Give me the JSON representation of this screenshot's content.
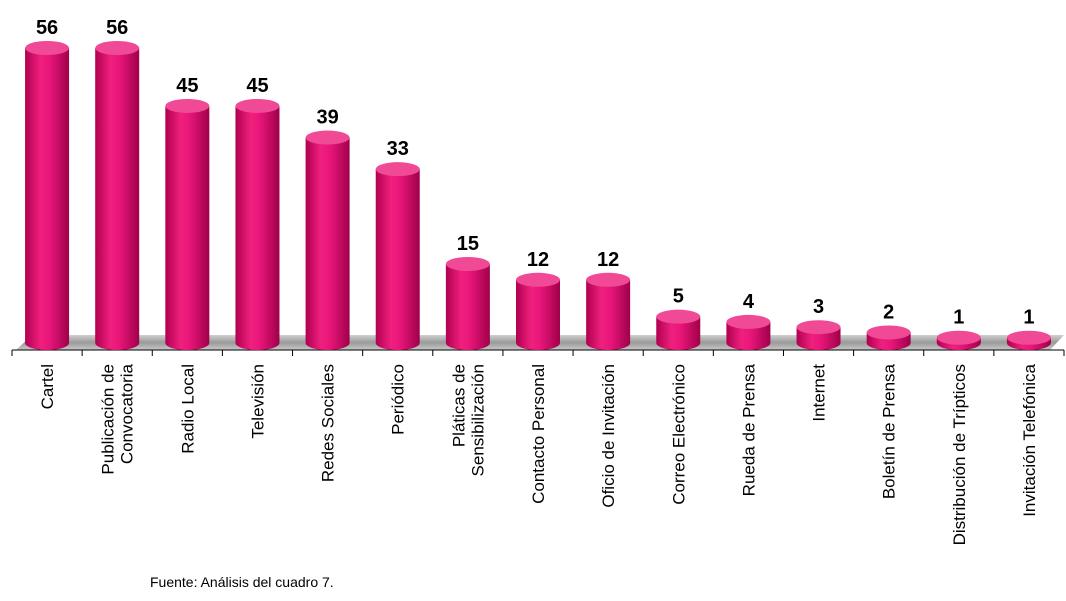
{
  "chart_data": {
    "type": "bar",
    "categories": [
      [
        "Cartel"
      ],
      [
        "Publicación de",
        "Convocatoria"
      ],
      [
        "Radio Local"
      ],
      [
        "Televisión"
      ],
      [
        "Redes Sociales"
      ],
      [
        "Periódico"
      ],
      [
        "Pláticas de",
        "Sensibilización"
      ],
      [
        "Contacto Personal"
      ],
      [
        "Oficio de Invitación"
      ],
      [
        "Correo Electrónico"
      ],
      [
        "Rueda de Prensa"
      ],
      [
        "Internet"
      ],
      [
        "Boletín de Prensa"
      ],
      [
        "Distribución de Trípticos"
      ],
      [
        "Invitación Telefónica"
      ]
    ],
    "values": [
      56,
      56,
      45,
      45,
      39,
      33,
      15,
      12,
      12,
      5,
      4,
      3,
      2,
      1,
      1
    ],
    "ylim": [
      0,
      56
    ],
    "grid": false,
    "bar_color": "#e0106e",
    "bar_top_color": "#f04a96",
    "floor_color": "#a8a8a8"
  },
  "source_note": "Fuente:  Análisis del cuadro 7."
}
